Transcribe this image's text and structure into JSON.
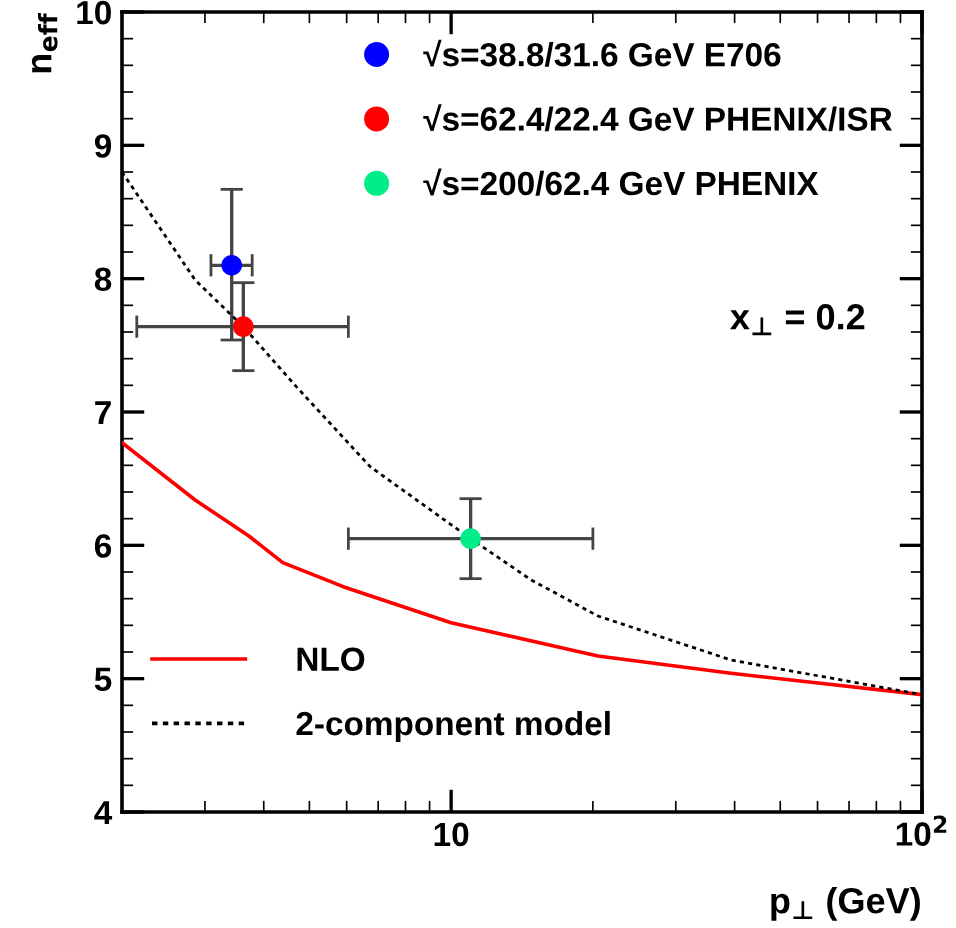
{
  "chart_data": {
    "type": "scatter",
    "xlabel": "p$_{⊥}$ (GeV)",
    "ylabel": "n$_{eff}$",
    "log": "x",
    "xlim": [
      2,
      100
    ],
    "ylim": [
      4,
      10
    ],
    "xticks": [
      10,
      {
        "value": 100,
        "label": "10$^{2}$"
      }
    ],
    "yticks": [
      4,
      5,
      6,
      7,
      8,
      9,
      10
    ],
    "grid": false,
    "legend": "top right",
    "marker": "circle",
    "annotations": [
      "x$_{⊥}$ = 0.2"
    ],
    "series": [
      {
        "name": "√s=38.8/31.6 GeV E706",
        "color": "#0000ff",
        "x": [
          3.42
        ],
        "values": [
          8.1
        ],
        "errors": [
          [
            7.54,
            8.67
          ]
        ],
        "xerrors": [
          [
            3.09,
            3.78
          ]
        ]
      },
      {
        "name": "√s=62.4/22.4 GeV PHENIX/ISR",
        "color": "#ff0000",
        "x": [
          3.62
        ],
        "values": [
          7.64
        ],
        "errors": [
          [
            7.31,
            7.97
          ]
        ],
        "xerrors": [
          [
            2.15,
            6.05
          ]
        ]
      },
      {
        "name": "√s=200/62.4 GeV PHENIX",
        "color": "#00ee88",
        "x": [
          11.0
        ],
        "values": [
          6.05
        ],
        "errors": [
          [
            5.75,
            6.35
          ]
        ],
        "xerrors": [
          [
            6.05,
            20
          ]
        ]
      },
      {
        "name": "NLO",
        "type": "line",
        "color": "#ff0000",
        "line_style": "solid",
        "marker": "none",
        "x": [
          2.0,
          2.86,
          3.72,
          4.39,
          5.9,
          10,
          20.5,
          39.3,
          100
        ],
        "values": [
          6.77,
          6.34,
          6.07,
          5.87,
          5.69,
          5.42,
          5.17,
          5.04,
          4.88
        ]
      },
      {
        "name": "2-component model",
        "type": "line",
        "color": "#000000",
        "line_style": "dotted",
        "marker": "none",
        "x": [
          2.0,
          2.86,
          3.62,
          4.69,
          6.73,
          11.0,
          14.8,
          20.5,
          39.3,
          100
        ],
        "values": [
          8.8,
          7.99,
          7.64,
          7.19,
          6.59,
          6.05,
          5.74,
          5.47,
          5.14,
          4.88
        ]
      }
    ]
  }
}
